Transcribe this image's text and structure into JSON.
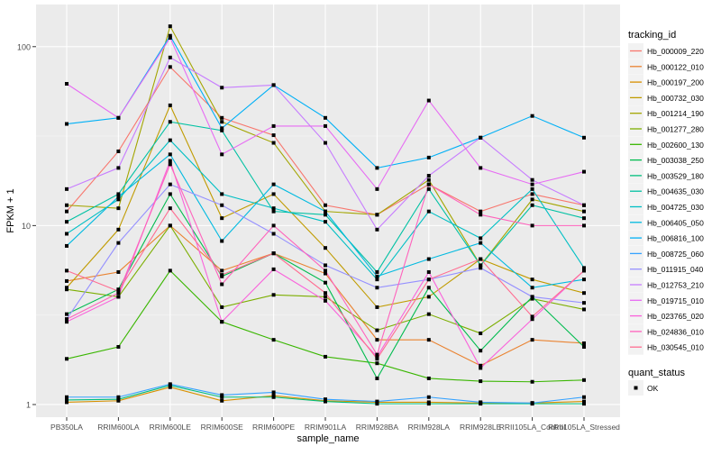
{
  "chart_data": {
    "type": "line",
    "xlabel": "sample_name",
    "ylabel": "FPKM + 1",
    "y_scale": "log10",
    "ylim": [
      0.85,
      172
    ],
    "y_ticks": [
      1,
      10,
      100
    ],
    "y_tick_labels": [
      "1",
      "10",
      "100"
    ],
    "grid": true,
    "legend_position": "right",
    "categories": [
      "PB350LA",
      "RRIM600LA",
      "RRIM600LE",
      "RRIM600SE",
      "RRIM600PE",
      "RRIM901LA",
      "RRIM928BA",
      "RRIM928LA",
      "RRIM928LE",
      "RRII105LA_Control",
      "RRII105LA_Stressed"
    ],
    "legend_title": "tracking_id",
    "shape_legend_title": "quant_status",
    "shape_legend_items": [
      "OK"
    ],
    "series": [
      {
        "name": "Hb_000009_220",
        "color": "#F8766D",
        "values": [
          12,
          26,
          77,
          40,
          32,
          13,
          11.5,
          17,
          12,
          15,
          13
        ]
      },
      {
        "name": "Hb_000122_010",
        "color": "#EA8331",
        "values": [
          4.9,
          5.5,
          10,
          5.6,
          7,
          5.4,
          2.3,
          2.3,
          1.65,
          2.3,
          2.2
        ]
      },
      {
        "name": "Hb_000197_200",
        "color": "#D89000",
        "values": [
          1.03,
          1.05,
          1.25,
          1.05,
          1.12,
          1.05,
          1.03,
          1.03,
          1.02,
          1.02,
          1.04
        ]
      },
      {
        "name": "Hb_000732_030",
        "color": "#C09B00",
        "values": [
          4.5,
          9.5,
          47,
          11,
          15,
          7.5,
          3.5,
          4,
          6.5,
          5,
          4.2
        ]
      },
      {
        "name": "Hb_001214_190",
        "color": "#A3A500",
        "values": [
          13,
          12.5,
          130,
          38,
          29,
          12,
          11.5,
          18,
          6,
          14,
          12
        ]
      },
      {
        "name": "Hb_001277_280",
        "color": "#7CAE00",
        "values": [
          4.4,
          4,
          10,
          3.5,
          4.1,
          4,
          2.6,
          3.2,
          2.5,
          3.9,
          3.4
        ]
      },
      {
        "name": "Hb_002600_130",
        "color": "#39B600",
        "values": [
          1.8,
          2.1,
          5.6,
          2.9,
          2.3,
          1.85,
          1.7,
          1.4,
          1.35,
          1.34,
          1.37
        ]
      },
      {
        "name": "Hb_003038_250",
        "color": "#00BB4E",
        "values": [
          3.2,
          4.4,
          15,
          5.2,
          7,
          4.8,
          1.4,
          4.5,
          2,
          4,
          2.1
        ]
      },
      {
        "name": "Hb_003529_180",
        "color": "#00BF7D",
        "values": [
          1.06,
          1.07,
          1.28,
          1.1,
          1.1,
          1.04,
          1.01,
          1.01,
          1.01,
          1.01,
          1.01
        ]
      },
      {
        "name": "Hb_004635_030",
        "color": "#00C1A3",
        "values": [
          10.5,
          15,
          38,
          34,
          12,
          11.5,
          5.5,
          16,
          6,
          13,
          11
        ]
      },
      {
        "name": "Hb_004725_030",
        "color": "#00BFC4",
        "values": [
          9,
          14,
          30,
          15,
          12.5,
          10.5,
          5,
          12,
          8.5,
          16,
          5.8
        ]
      },
      {
        "name": "Hb_006405_050",
        "color": "#00BAE0",
        "values": [
          7.7,
          14.5,
          25,
          8.2,
          17,
          12,
          5.2,
          6.5,
          8,
          4.5,
          5
        ]
      },
      {
        "name": "Hb_006816_100",
        "color": "#00B0F6",
        "values": [
          37,
          40,
          115,
          35,
          61,
          40,
          21,
          24,
          31,
          41,
          31
        ]
      },
      {
        "name": "Hb_008725_060",
        "color": "#35A2FF",
        "values": [
          1.1,
          1.1,
          1.3,
          1.13,
          1.17,
          1.07,
          1.04,
          1.1,
          1.03,
          1.02,
          1.1
        ]
      },
      {
        "name": "Hb_011915_040",
        "color": "#9590FF",
        "values": [
          3,
          8,
          17,
          13,
          9,
          6,
          4.5,
          5,
          5.8,
          4,
          3.7
        ]
      },
      {
        "name": "Hb_012753_210",
        "color": "#C77CFF",
        "values": [
          16,
          21,
          87,
          59,
          61,
          29,
          9.5,
          19,
          31,
          18,
          13
        ]
      },
      {
        "name": "Hb_019715_010",
        "color": "#E76BF3",
        "values": [
          62,
          40,
          112,
          25,
          36,
          36,
          16,
          50,
          21,
          17,
          20
        ]
      },
      {
        "name": "Hb_023765_020",
        "color": "#FA62DB",
        "values": [
          2.9,
          4,
          23,
          2.9,
          5.7,
          3.8,
          1.85,
          5.5,
          1.6,
          3,
          5.6
        ]
      },
      {
        "name": "Hb_024836_010",
        "color": "#FF62BC",
        "values": [
          3,
          4.2,
          22,
          4.7,
          10,
          5.6,
          1.9,
          17,
          11.5,
          10,
          10
        ]
      },
      {
        "name": "Hb_030545_010",
        "color": "#FF6C91",
        "values": [
          5.6,
          4.3,
          12.5,
          5.3,
          7,
          4.2,
          1.8,
          5,
          6.5,
          3.1,
          5.6
        ]
      }
    ]
  }
}
